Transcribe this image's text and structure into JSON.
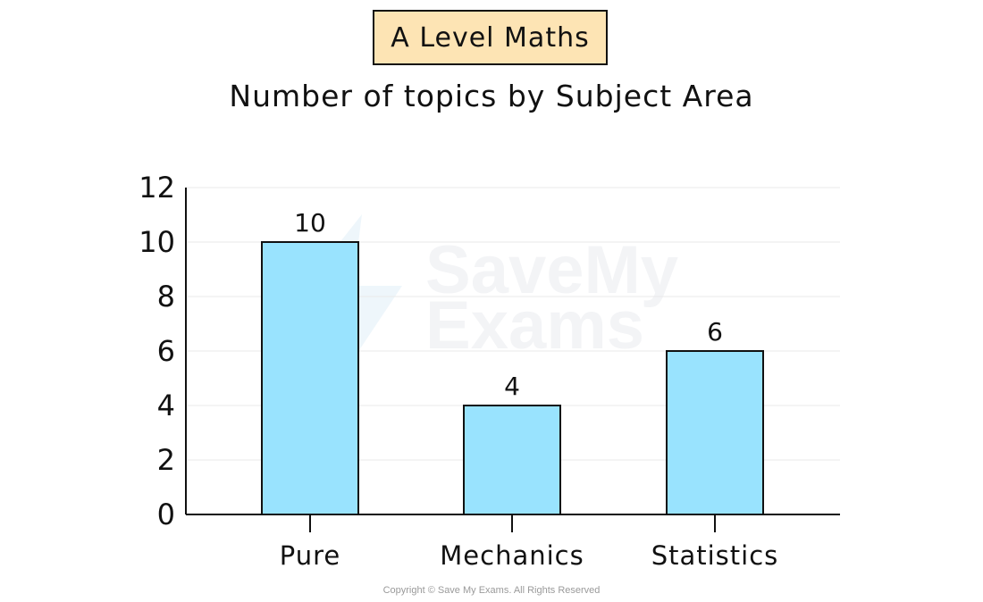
{
  "badge": {
    "label": "A Level Maths",
    "color": "#fde4b4"
  },
  "watermark": {
    "line1": "SaveMy",
    "line2": "Exams"
  },
  "footer": {
    "copyright": "Copyright © Save My Exams. All Rights Reserved"
  },
  "chart_data": {
    "type": "bar",
    "title": "Number of topics by Subject Area",
    "xlabel": "",
    "ylabel": "",
    "categories": [
      "Pure",
      "Mechanics",
      "Statistics"
    ],
    "values": [
      10,
      4,
      6
    ],
    "data_labels": [
      "10",
      "4",
      "6"
    ],
    "ylim": [
      0,
      12
    ],
    "yticks": [
      0,
      2,
      4,
      6,
      8,
      10,
      12
    ],
    "grid": true,
    "bar_color": "#99e3fe",
    "legend": "none"
  }
}
